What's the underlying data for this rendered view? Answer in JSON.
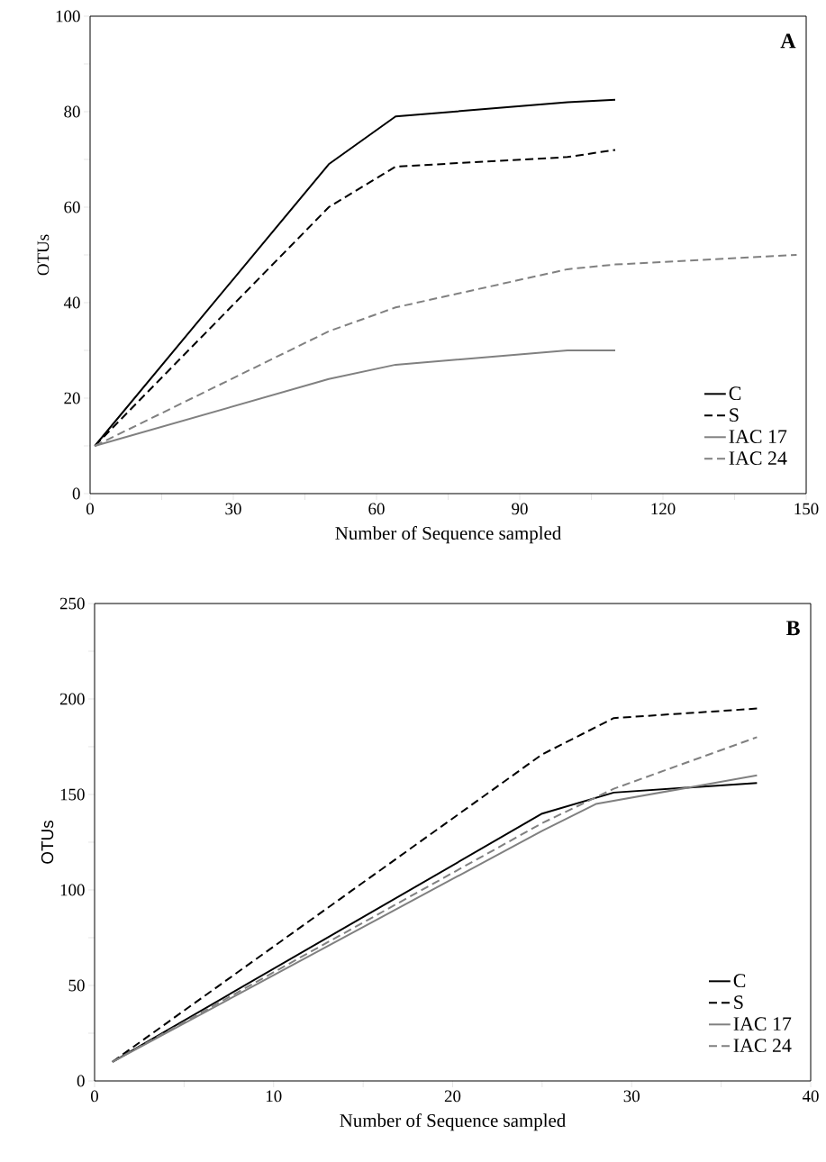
{
  "chart_data": [
    {
      "type": "line",
      "xlabel": "Number of Sequence sampled",
      "ylabel": "OTUs",
      "annotations": [
        "**A**"
      ],
      "legend": "bottom right",
      "xlim": [
        0,
        150
      ],
      "ylim": [
        0,
        100
      ],
      "xticks": [
        0,
        {
          "value": 15,
          "label": null
        },
        30,
        {
          "value": 45,
          "label": null
        },
        60,
        {
          "value": 75,
          "label": null
        },
        90,
        {
          "value": 105,
          "label": null
        },
        120,
        {
          "value": 135,
          "label": null
        },
        150
      ],
      "yticks": [
        0,
        {
          "value": 10,
          "label": null
        },
        20,
        {
          "value": 30,
          "label": null
        },
        40,
        {
          "value": 50,
          "label": null
        },
        60,
        {
          "value": 70,
          "label": null
        },
        80,
        {
          "value": 90,
          "label": null
        },
        100
      ],
      "series": [
        {
          "name": "C",
          "color": "#000000",
          "line_style": "solid",
          "x": [
            1,
            50,
            64,
            100,
            110
          ],
          "values": [
            10,
            69,
            79,
            82,
            82.5
          ]
        },
        {
          "name": "S",
          "color": "#000000",
          "line_style": "dashed",
          "x": [
            1,
            50,
            64,
            100,
            110
          ],
          "values": [
            10,
            60,
            68.5,
            70.5,
            72
          ]
        },
        {
          "name": "IAC 17",
          "color": "#808080",
          "line_style": "solid",
          "x": [
            1,
            50,
            64,
            100,
            110
          ],
          "values": [
            10,
            24,
            27,
            30,
            30
          ]
        },
        {
          "name": "IAC 24",
          "color": "#808080",
          "line_style": "dashed",
          "x": [
            1,
            50,
            64,
            100,
            110,
            148
          ],
          "values": [
            10,
            34,
            39,
            47,
            48,
            50
          ]
        }
      ]
    },
    {
      "type": "line",
      "xlabel": "Number of Sequence sampled",
      "ylabel": "OTUs",
      "annotations": [
        "**B**"
      ],
      "legend": "bottom right",
      "xlim": [
        0,
        40
      ],
      "ylim": [
        0,
        250
      ],
      "xticks": [
        0,
        {
          "value": 5,
          "label": null
        },
        10,
        {
          "value": 15,
          "label": null
        },
        20,
        {
          "value": 25,
          "label": null
        },
        30,
        {
          "value": 35,
          "label": null
        },
        40
      ],
      "yticks": [
        0,
        {
          "value": 25,
          "label": null
        },
        50,
        {
          "value": 75,
          "label": null
        },
        100,
        {
          "value": 125,
          "label": null
        },
        150,
        {
          "value": 175,
          "label": null
        },
        200,
        {
          "value": 225,
          "label": null
        },
        250
      ],
      "series": [
        {
          "name": "C",
          "color": "#000000",
          "line_style": "solid",
          "x": [
            1,
            25,
            29,
            37
          ],
          "values": [
            10,
            140,
            151,
            156
          ]
        },
        {
          "name": "S",
          "color": "#000000",
          "line_style": "dashed",
          "x": [
            1,
            25,
            29,
            37
          ],
          "values": [
            10,
            171,
            190,
            195
          ]
        },
        {
          "name": "IAC 17",
          "color": "#808080",
          "line_style": "solid",
          "x": [
            1,
            25,
            28,
            37
          ],
          "values": [
            10,
            131,
            145,
            160
          ]
        },
        {
          "name": "IAC 24",
          "color": "#808080",
          "line_style": "dashed",
          "x": [
            1,
            25,
            29,
            37
          ],
          "values": [
            10,
            135,
            153,
            180
          ]
        }
      ]
    }
  ]
}
